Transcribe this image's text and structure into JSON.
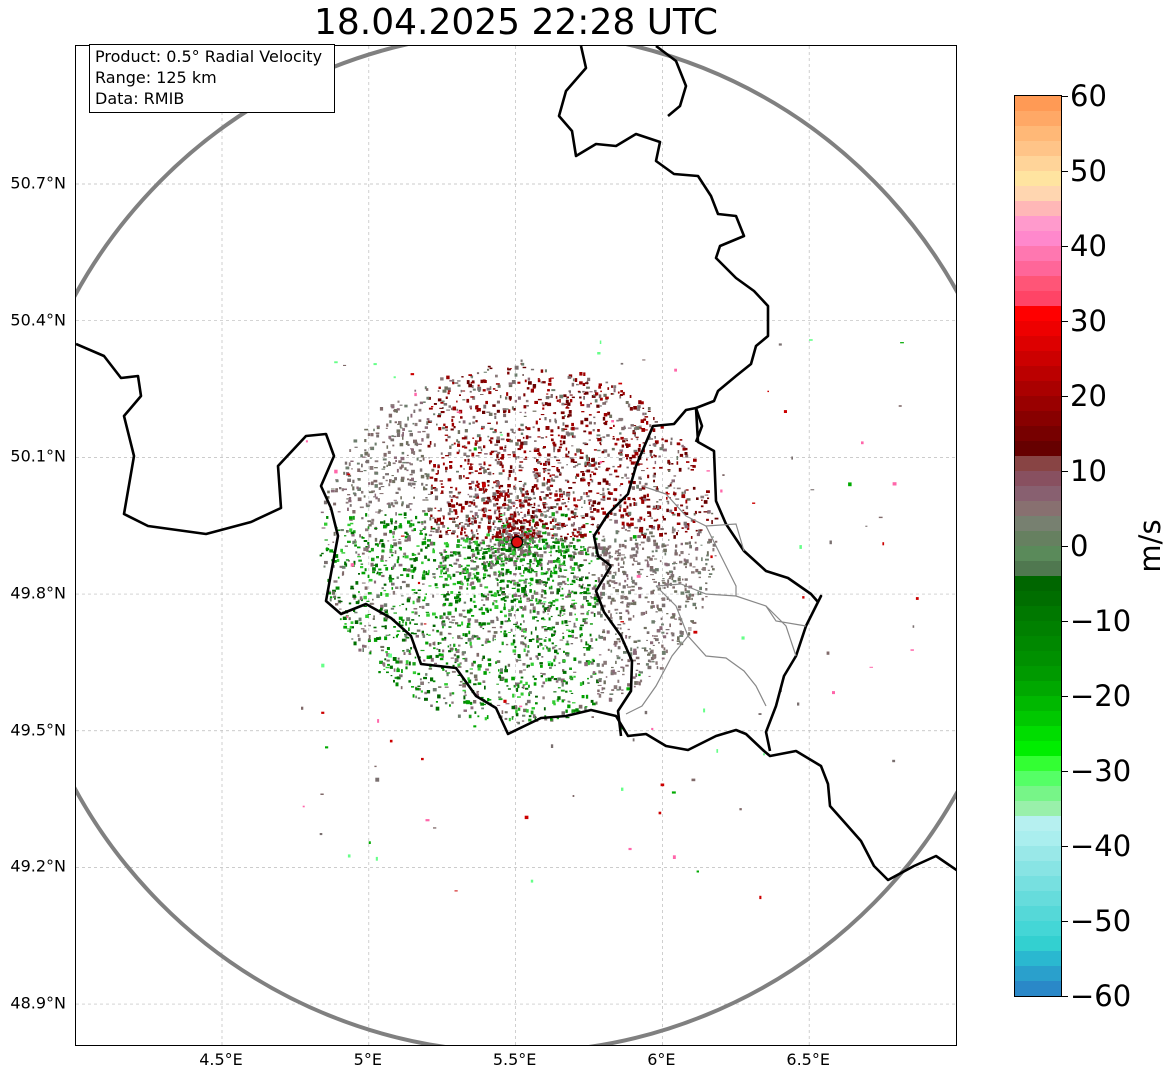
{
  "title": "18.04.2025 22:28 UTC",
  "info": {
    "product": "Product: 0.5° Radial Velocity",
    "range": "Range: 125 km",
    "data": "Data: RMIB"
  },
  "map": {
    "lon_ticks": [
      {
        "value": 4.5,
        "label": "4.5°E"
      },
      {
        "value": 5.0,
        "label": "5°E"
      },
      {
        "value": 5.5,
        "label": "5.5°E"
      },
      {
        "value": 6.0,
        "label": "6°E"
      },
      {
        "value": 6.5,
        "label": "6.5°E"
      }
    ],
    "lat_ticks": [
      {
        "value": 50.7,
        "label": "50.7°N"
      },
      {
        "value": 50.4,
        "label": "50.4°N"
      },
      {
        "value": 50.1,
        "label": "50.1°N"
      },
      {
        "value": 49.8,
        "label": "49.8°N"
      },
      {
        "value": 49.5,
        "label": "49.5°N"
      },
      {
        "value": 49.2,
        "label": "49.2°N"
      },
      {
        "value": 48.9,
        "label": "48.9°N"
      }
    ],
    "lon_range": [
      4.0,
      7.0
    ],
    "lat_range": [
      48.8,
      51.0
    ],
    "radar_site": {
      "lon": 5.505,
      "lat": 49.914
    },
    "range_ring_km": 125,
    "colors": {
      "border": "#000000",
      "admin": "#888888",
      "ring": "#808080",
      "grid": "#bbbbbb",
      "radar_marker": "#e01010"
    }
  },
  "colorbar": {
    "unit": "m/s",
    "min": -60,
    "max": 60,
    "ticks": [
      {
        "value": 60,
        "label": "60"
      },
      {
        "value": 50,
        "label": "50"
      },
      {
        "value": 40,
        "label": "40"
      },
      {
        "value": 30,
        "label": "30"
      },
      {
        "value": 20,
        "label": "20"
      },
      {
        "value": 10,
        "label": "10"
      },
      {
        "value": 0,
        "label": "0"
      },
      {
        "value": -10,
        "label": "−10"
      },
      {
        "value": -20,
        "label": "−20"
      },
      {
        "value": -30,
        "label": "−30"
      },
      {
        "value": -40,
        "label": "−40"
      },
      {
        "value": -50,
        "label": "−50"
      },
      {
        "value": -60,
        "label": "−60"
      }
    ],
    "colors_top_to_bottom": [
      "#ff9a55",
      "#ffa866",
      "#ffb877",
      "#ffc488",
      "#ffd499",
      "#ffe4a0",
      "#ffd6b0",
      "#ffb7b7",
      "#ff9acc",
      "#ff88cc",
      "#ff77b0",
      "#ff6699",
      "#ff5577",
      "#ff4466",
      "#ff0000",
      "#ee0000",
      "#dd0000",
      "#cc0000",
      "#bb0000",
      "#aa0000",
      "#990000",
      "#880000",
      "#770000",
      "#660000",
      "#884444",
      "#885060",
      "#886070",
      "#887070",
      "#778070",
      "#668060",
      "#5a8a5a",
      "#507850",
      "#006600",
      "#006e00",
      "#007800",
      "#008000",
      "#008800",
      "#009000",
      "#009a00",
      "#00a800",
      "#00b800",
      "#00c800",
      "#00dd00",
      "#00ee00",
      "#33ff33",
      "#55ff66",
      "#77f588",
      "#99f0aa",
      "#b6f0f0",
      "#aaeeee",
      "#99e8e8",
      "#88e4e4",
      "#77e0e0",
      "#66dcdc",
      "#55d8d8",
      "#44d6d6",
      "#33d0d0",
      "#2ab8d0",
      "#2aa0cc",
      "#2a88c8"
    ]
  }
}
